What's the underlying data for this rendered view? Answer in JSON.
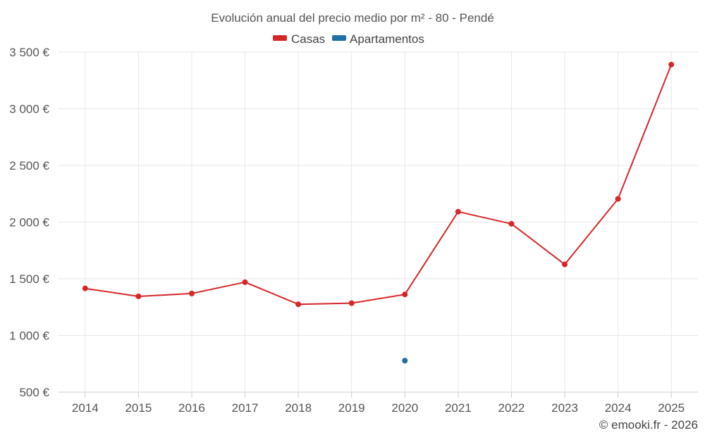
{
  "chart_data": {
    "type": "line",
    "title": "Evolución anual del precio medio por m² - 80 - Pendé",
    "categories": [
      "2014",
      "2015",
      "2016",
      "2017",
      "2018",
      "2019",
      "2020",
      "2021",
      "2022",
      "2023",
      "2024",
      "2025"
    ],
    "series": [
      {
        "name": "Casas",
        "color": "#d62728",
        "values": [
          1415,
          1345,
          1370,
          1470,
          1275,
          1285,
          1362,
          2092,
          1985,
          1627,
          2205,
          3390
        ]
      },
      {
        "name": "Apartamentos",
        "color": "#1f6fa8",
        "values": [
          null,
          null,
          null,
          null,
          null,
          null,
          778,
          null,
          null,
          null,
          null,
          null
        ]
      }
    ],
    "ylim": [
      500,
      3500
    ],
    "yticks": [
      500,
      1000,
      1500,
      2000,
      2500,
      3000,
      3500
    ],
    "ytick_labels": [
      "500 €",
      "1 000 €",
      "1 500 €",
      "2 000 €",
      "2 500 €",
      "3 000 €",
      "3 500 €"
    ],
    "legend": "top-center",
    "grid": true
  },
  "credit": "© emooki.fr - 2026"
}
